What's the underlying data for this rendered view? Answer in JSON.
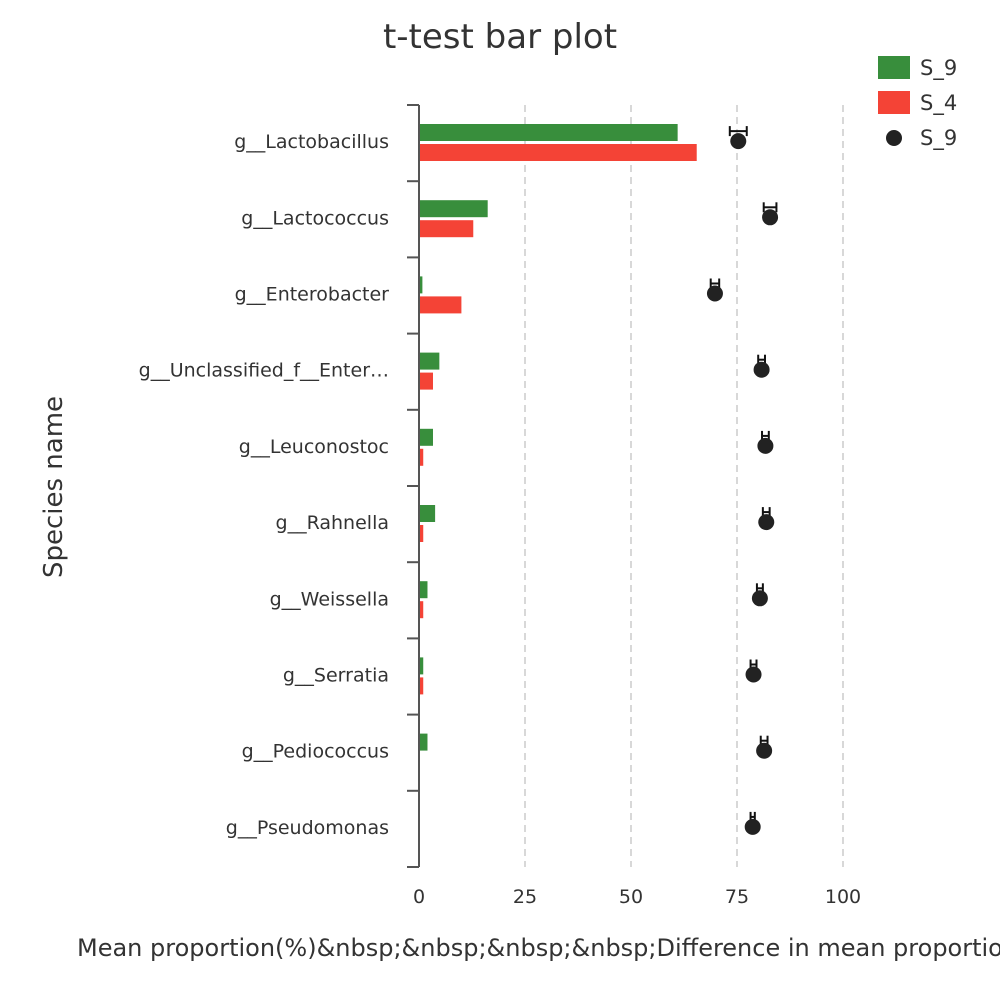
{
  "chart_data": {
    "type": "bar",
    "title": "t-test bar plot",
    "ylabel": "Species name",
    "xlabel": "Mean proportion(%)&nbsp;&nbsp;&nbsp;&nbsp;Difference in mean proportions (%)",
    "categories": [
      "g__Lactobacillus",
      "g__Lactococcus",
      "g__Enterobacter",
      "g__Unclassified_f__Enter…",
      "g__Leuconostoc",
      "g__Rahnella",
      "g__Weissella",
      "g__Serratia",
      "g__Pediococcus",
      "g__Pseudomonas"
    ],
    "xlim": [
      0,
      100
    ],
    "xticks": [
      0,
      25,
      50,
      75,
      100
    ],
    "grid": "vertical dashed",
    "legend_position": "top-right",
    "series": [
      {
        "name": "S_9",
        "mark": "bar",
        "color": "#388e3c",
        "values": [
          61,
          16.2,
          0.8,
          4.8,
          3.3,
          3.8,
          2.0,
          1.0,
          2.0,
          0
        ]
      },
      {
        "name": "S_4",
        "mark": "bar",
        "color": "#f44336",
        "values": [
          65.5,
          12.8,
          10.0,
          3.3,
          1.0,
          1.0,
          1.0,
          1.0,
          0,
          0
        ]
      },
      {
        "name": "S_9",
        "mark": "point",
        "color": "#222222",
        "values": [
          75.3,
          82.8,
          69.8,
          80.8,
          81.7,
          81.9,
          80.4,
          78.9,
          81.4,
          78.7
        ],
        "error": [
          2.0,
          1.5,
          1.0,
          0.8,
          0.8,
          0.8,
          0.7,
          0.7,
          0.8,
          0.5
        ]
      }
    ]
  }
}
